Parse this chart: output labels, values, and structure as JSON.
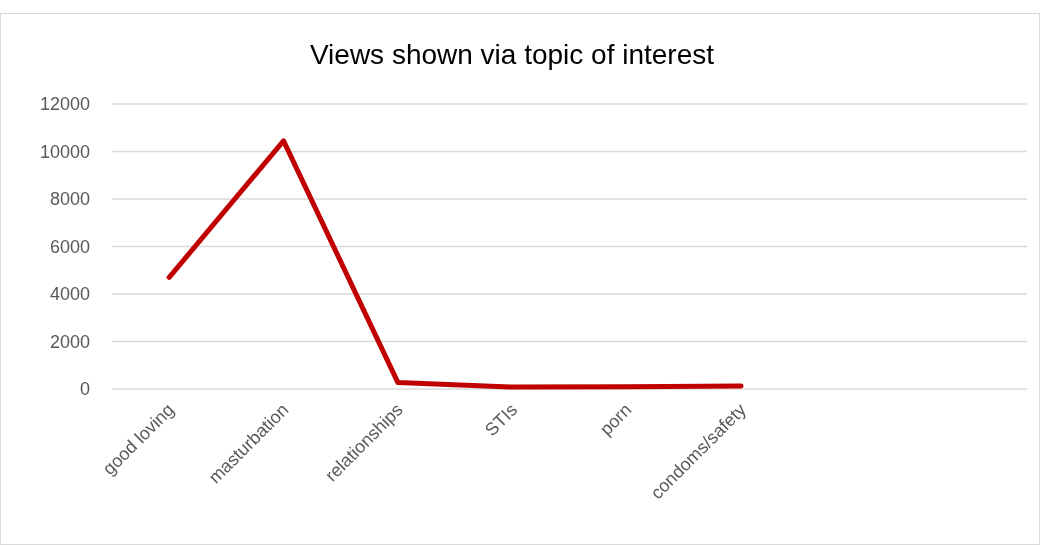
{
  "chart_data": {
    "type": "line",
    "title": "Views shown via topic of interest",
    "categories": [
      "good loving",
      "masturbation",
      "relationships",
      "STIs",
      "porn",
      "condoms/safety",
      null,
      null
    ],
    "series": [
      {
        "color": "#c00000",
        "values": [
          4700,
          10450,
          270,
          80,
          90,
          130,
          null,
          null
        ]
      }
    ],
    "ylim": [
      0,
      12000
    ],
    "yticks": [
      0,
      2000,
      4000,
      6000,
      8000,
      10000,
      12000
    ],
    "grid": "y",
    "marker": "none",
    "line_style": "solid"
  }
}
